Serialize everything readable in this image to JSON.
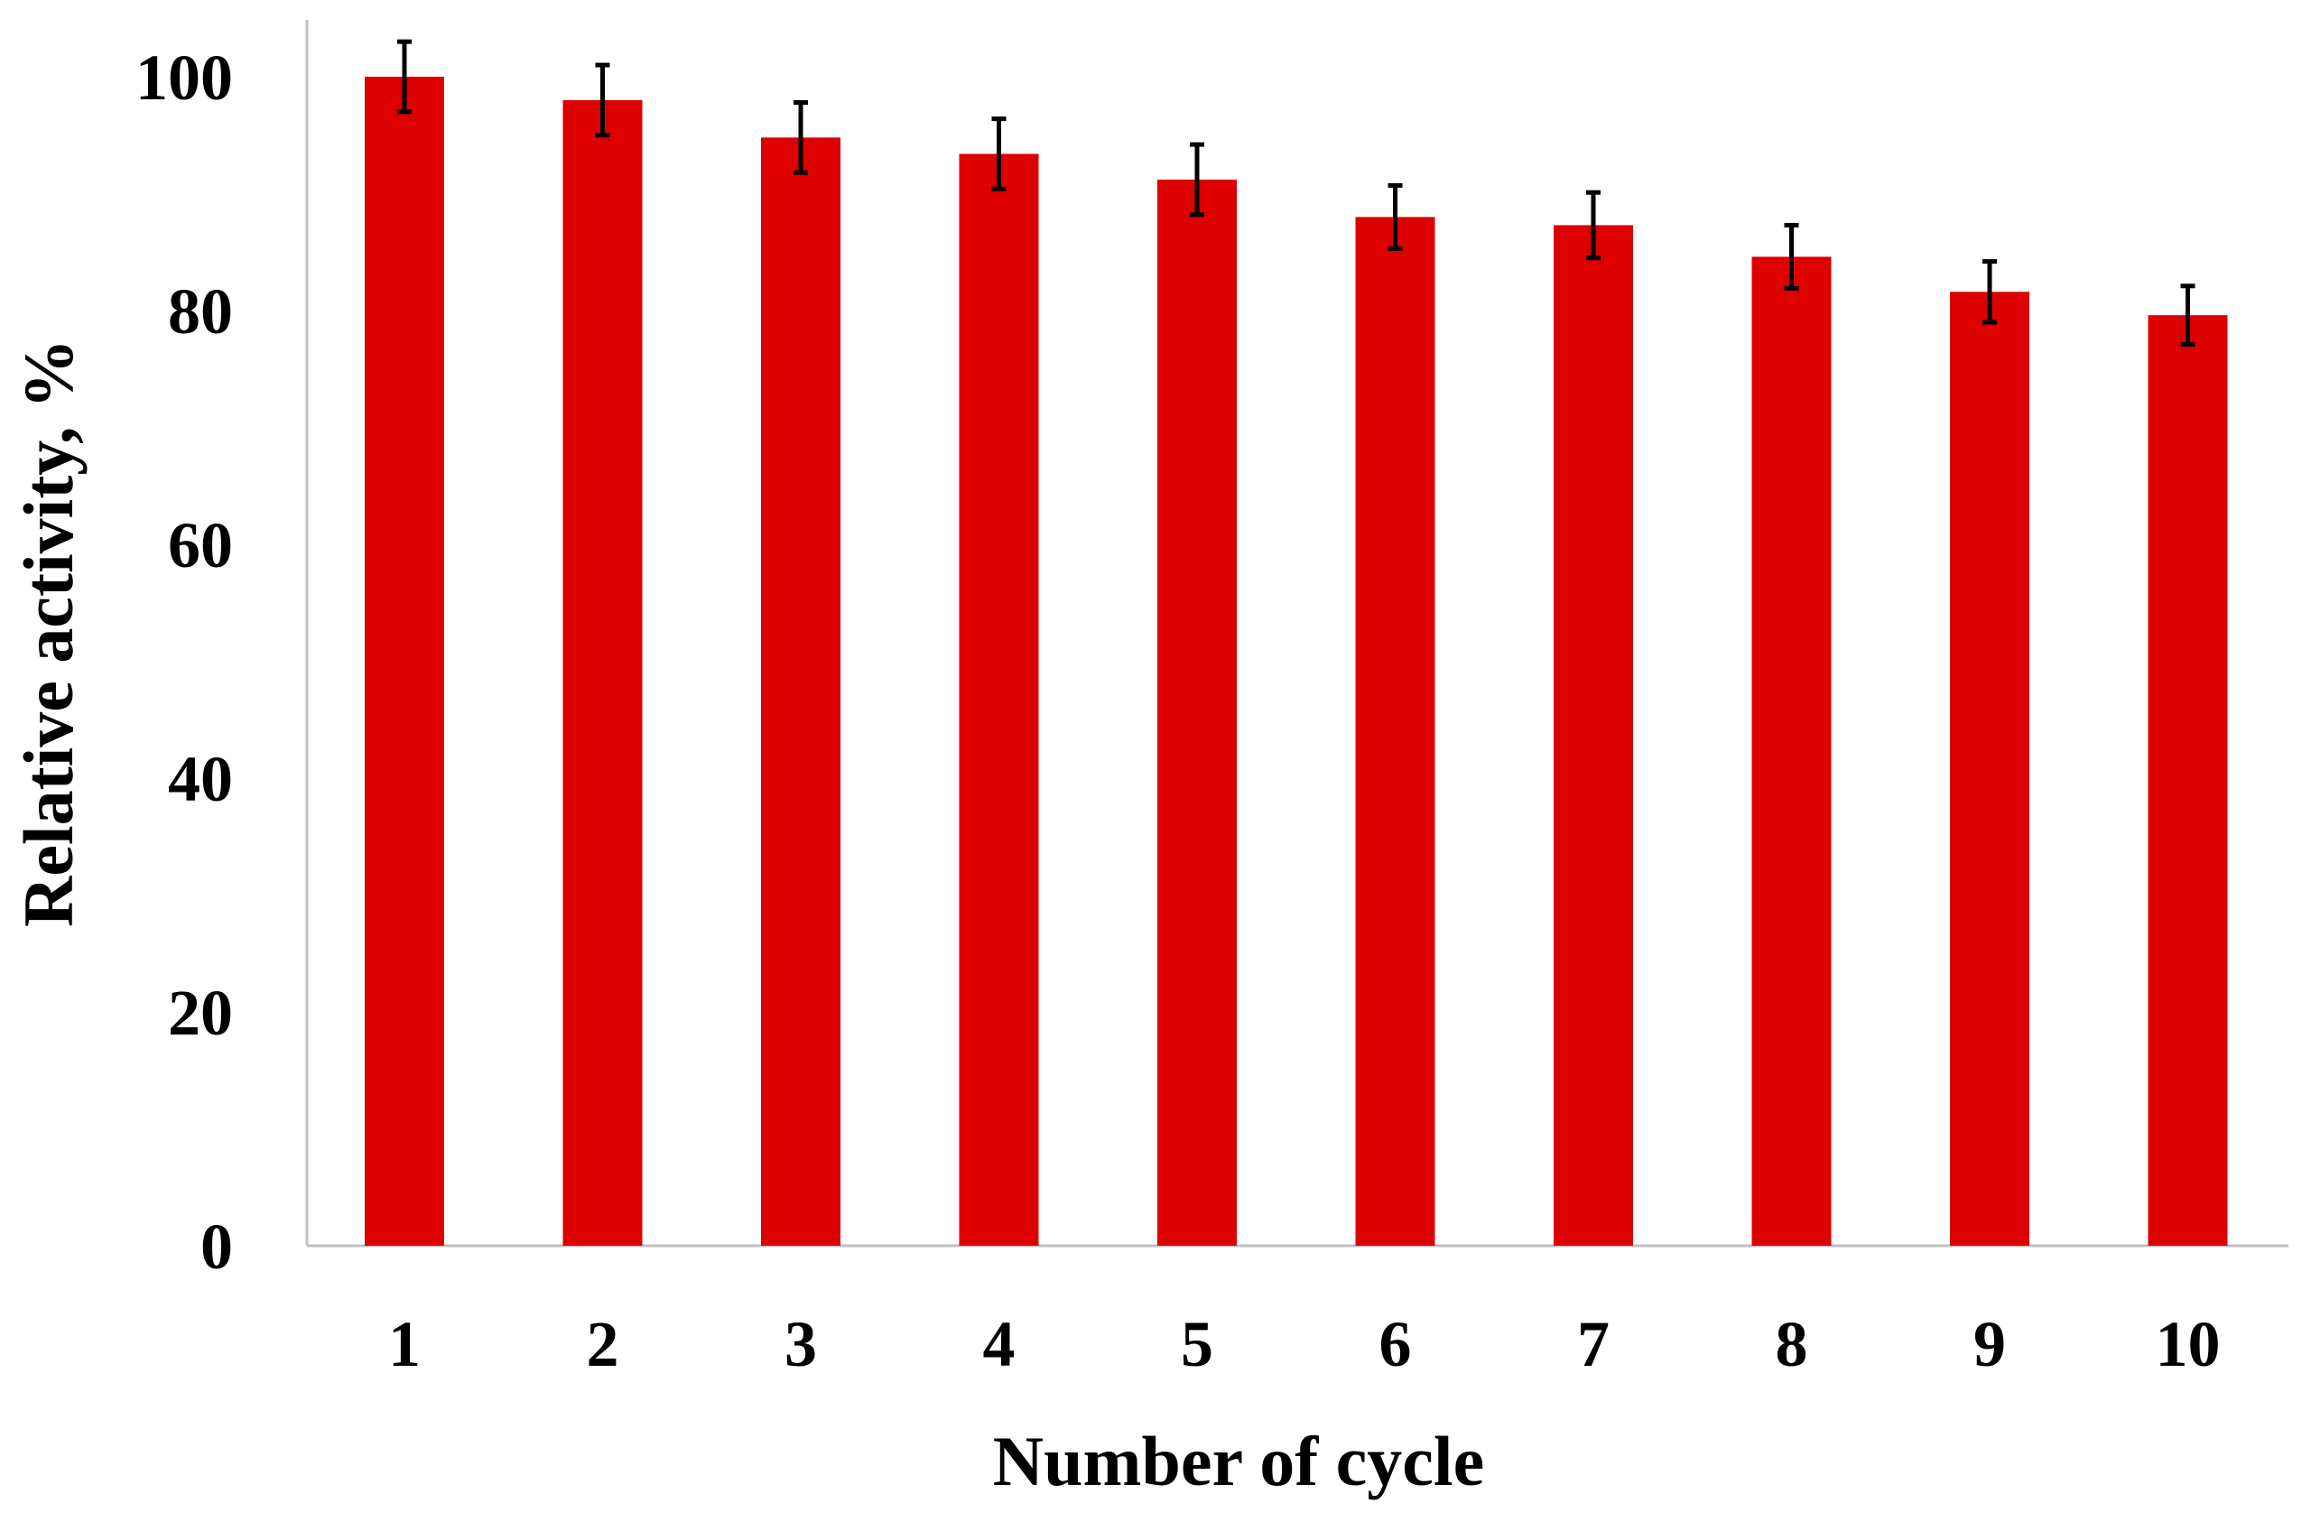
{
  "chart_data": {
    "type": "bar",
    "categories": [
      "1",
      "2",
      "3",
      "4",
      "5",
      "6",
      "7",
      "8",
      "9",
      "10"
    ],
    "series": [
      {
        "values": [
          100,
          98,
          94.8,
          93.4,
          91.2,
          88,
          87.3,
          84.6,
          81.6,
          79.6
        ],
        "error": [
          3,
          3,
          3,
          3,
          3,
          2.7,
          2.8,
          2.7,
          2.6,
          2.5
        ]
      }
    ],
    "xlabel": "Number of cycle",
    "ylabel": "Relative activity, %",
    "yticks": [
      "0",
      "20",
      "40",
      "60",
      "80",
      "100"
    ],
    "ytick_values": [
      0,
      20,
      40,
      60,
      80,
      100
    ],
    "ylim": [
      0,
      105
    ],
    "grid": false,
    "legend": "none",
    "bar_color": "#dd0000",
    "errorbar_color": "#000000",
    "axis_color": "#bfbfbf"
  }
}
